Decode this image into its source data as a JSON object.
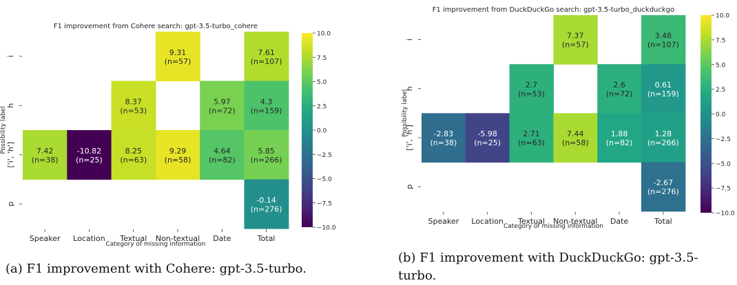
{
  "chart_data": [
    {
      "type": "heatmap",
      "title": "F1 improvement from Cohere search: gpt-3.5-turbo_cohere",
      "xlabel": "Category of missing information",
      "ylabel": "Possibility label",
      "categories": [
        "Speaker",
        "Location",
        "Textual",
        "Non-textual",
        "Date",
        "Total"
      ],
      "rows": [
        "i",
        "h",
        "['i', 'h']",
        "p"
      ],
      "cells": [
        [
          null,
          null,
          null,
          {
            "value": "9.31",
            "n": "(n=57)"
          },
          null,
          {
            "value": "7.61",
            "n": "(n=107)"
          }
        ],
        [
          null,
          null,
          {
            "value": "8.37",
            "n": "(n=53)"
          },
          null,
          {
            "value": "5.97",
            "n": "(n=72)"
          },
          {
            "value": "4.3",
            "n": "(n=159)"
          }
        ],
        [
          {
            "value": "7.42",
            "n": "(n=38)"
          },
          {
            "value": "-10.82",
            "n": "(n=25)"
          },
          {
            "value": "8.25",
            "n": "(n=63)"
          },
          {
            "value": "9.29",
            "n": "(n=58)"
          },
          {
            "value": "4.64",
            "n": "(n=82)"
          },
          {
            "value": "5.85",
            "n": "(n=266)"
          }
        ],
        [
          null,
          null,
          null,
          null,
          null,
          {
            "value": "-0.14",
            "n": "(n=276)"
          }
        ]
      ],
      "colorbar": {
        "min": -10,
        "max": 10,
        "ticks": [
          "10.0",
          "7.5",
          "5.0",
          "2.5",
          "0.0",
          "−2.5",
          "−5.0",
          "−7.5",
          "−10.0"
        ]
      },
      "colormap": "viridis",
      "caption": "(a) F1 improvement with Cohere: gpt-3.5-turbo."
    },
    {
      "type": "heatmap",
      "title": "F1 improvement from DuckDuckGo search: gpt-3.5-turbo_duckduckgo",
      "xlabel": "Category of missing information",
      "ylabel": "Possibility label",
      "categories": [
        "Speaker",
        "Location",
        "Textual",
        "Non-textual",
        "Date",
        "Total"
      ],
      "rows": [
        "i",
        "h",
        "['i', 'h']",
        "p"
      ],
      "cells": [
        [
          null,
          null,
          null,
          {
            "value": "7.37",
            "n": "(n=57)"
          },
          null,
          {
            "value": "3.48",
            "n": "(n=107)"
          }
        ],
        [
          null,
          null,
          {
            "value": "2.7",
            "n": "(n=53)"
          },
          null,
          {
            "value": "2.6",
            "n": "(n=72)"
          },
          {
            "value": "0.61",
            "n": "(n=159)"
          }
        ],
        [
          {
            "value": "-2.83",
            "n": "(n=38)"
          },
          {
            "value": "-5.98",
            "n": "(n=25)"
          },
          {
            "value": "2.71",
            "n": "(n=63)"
          },
          {
            "value": "7.44",
            "n": "(n=58)"
          },
          {
            "value": "1.88",
            "n": "(n=82)"
          },
          {
            "value": "1.28",
            "n": "(n=266)"
          }
        ],
        [
          null,
          null,
          null,
          null,
          null,
          {
            "value": "-2.67",
            "n": "(n=276)"
          }
        ]
      ],
      "colorbar": {
        "min": -10,
        "max": 10,
        "ticks": [
          "10.0",
          "7.5",
          "5.0",
          "2.5",
          "0.0",
          "−2.5",
          "−5.0",
          "−7.5",
          "−10.0"
        ]
      },
      "colormap": "viridis",
      "caption": "(b) F1 improvement with DuckDuckGo: gpt-3.5-turbo."
    }
  ]
}
